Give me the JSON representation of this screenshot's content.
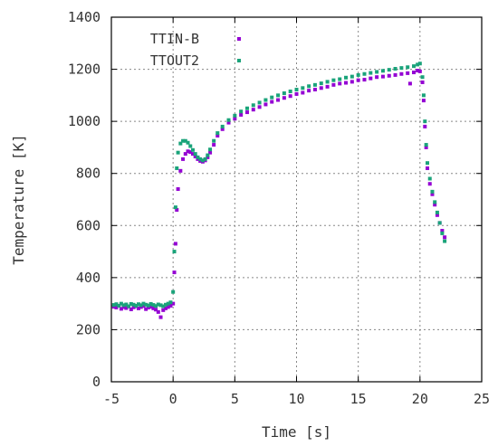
{
  "chart_data": {
    "type": "scatter",
    "title": "",
    "xlabel": "Time [s]",
    "ylabel": "Temperature [K]",
    "xlim": [
      -5,
      25
    ],
    "ylim": [
      0,
      1400
    ],
    "xticks": [
      -5,
      0,
      5,
      10,
      15,
      20,
      25
    ],
    "yticks": [
      0,
      200,
      400,
      600,
      800,
      1000,
      1200,
      1400
    ],
    "grid": true,
    "legend_position": "top-left",
    "series": [
      {
        "name": "TTIN-B",
        "color": "#9400d3",
        "points": [
          [
            -4.8,
            288
          ],
          [
            -4.6,
            285
          ],
          [
            -4.4,
            292
          ],
          [
            -4.2,
            280
          ],
          [
            -4.0,
            287
          ],
          [
            -3.8,
            283
          ],
          [
            -3.6,
            289
          ],
          [
            -3.4,
            278
          ],
          [
            -3.2,
            286
          ],
          [
            -3.0,
            290
          ],
          [
            -2.8,
            282
          ],
          [
            -2.6,
            287
          ],
          [
            -2.4,
            291
          ],
          [
            -2.2,
            279
          ],
          [
            -2.0,
            285
          ],
          [
            -1.8,
            288
          ],
          [
            -1.6,
            282
          ],
          [
            -1.4,
            277
          ],
          [
            -1.2,
            268
          ],
          [
            -1.0,
            248
          ],
          [
            -0.8,
            275
          ],
          [
            -0.6,
            282
          ],
          [
            -0.4,
            287
          ],
          [
            -0.2,
            292
          ],
          [
            0.0,
            300
          ],
          [
            0.1,
            420
          ],
          [
            0.2,
            530
          ],
          [
            0.3,
            660
          ],
          [
            0.4,
            740
          ],
          [
            0.6,
            810
          ],
          [
            0.8,
            855
          ],
          [
            1.0,
            875
          ],
          [
            1.2,
            885
          ],
          [
            1.4,
            882
          ],
          [
            1.6,
            875
          ],
          [
            1.8,
            865
          ],
          [
            2.0,
            855
          ],
          [
            2.2,
            848
          ],
          [
            2.4,
            845
          ],
          [
            2.6,
            850
          ],
          [
            2.8,
            862
          ],
          [
            3.0,
            880
          ],
          [
            3.3,
            910
          ],
          [
            3.6,
            945
          ],
          [
            4.0,
            970
          ],
          [
            4.5,
            995
          ],
          [
            5.0,
            1010
          ],
          [
            5.5,
            1025
          ],
          [
            6.0,
            1035
          ],
          [
            6.5,
            1045
          ],
          [
            7.0,
            1055
          ],
          [
            7.5,
            1065
          ],
          [
            8.0,
            1075
          ],
          [
            8.5,
            1082
          ],
          [
            9.0,
            1090
          ],
          [
            9.5,
            1097
          ],
          [
            10.0,
            1105
          ],
          [
            10.5,
            1110
          ],
          [
            11.0,
            1118
          ],
          [
            11.5,
            1122
          ],
          [
            12.0,
            1128
          ],
          [
            12.5,
            1133
          ],
          [
            13.0,
            1140
          ],
          [
            13.5,
            1145
          ],
          [
            14.0,
            1148
          ],
          [
            14.5,
            1152
          ],
          [
            15.0,
            1158
          ],
          [
            15.5,
            1160
          ],
          [
            16.0,
            1165
          ],
          [
            16.5,
            1170
          ],
          [
            17.0,
            1172
          ],
          [
            17.5,
            1175
          ],
          [
            18.0,
            1178
          ],
          [
            18.5,
            1182
          ],
          [
            19.0,
            1185
          ],
          [
            19.2,
            1145
          ],
          [
            19.5,
            1188
          ],
          [
            19.8,
            1195
          ],
          [
            20.0,
            1192
          ],
          [
            20.2,
            1150
          ],
          [
            20.3,
            1080
          ],
          [
            20.4,
            980
          ],
          [
            20.5,
            900
          ],
          [
            20.6,
            820
          ],
          [
            20.8,
            760
          ],
          [
            21.0,
            720
          ],
          [
            21.2,
            680
          ],
          [
            21.4,
            640
          ],
          [
            21.6,
            610
          ],
          [
            21.8,
            580
          ],
          [
            22.0,
            555
          ]
        ]
      },
      {
        "name": "TTOUT2",
        "color": "#1aa37a",
        "points": [
          [
            -4.8,
            295
          ],
          [
            -4.6,
            298
          ],
          [
            -4.4,
            292
          ],
          [
            -4.2,
            300
          ],
          [
            -4.0,
            294
          ],
          [
            -3.8,
            297
          ],
          [
            -3.6,
            290
          ],
          [
            -3.4,
            299
          ],
          [
            -3.2,
            296
          ],
          [
            -3.0,
            292
          ],
          [
            -2.8,
            298
          ],
          [
            -2.6,
            294
          ],
          [
            -2.4,
            300
          ],
          [
            -2.2,
            296
          ],
          [
            -2.0,
            293
          ],
          [
            -1.8,
            299
          ],
          [
            -1.6,
            295
          ],
          [
            -1.4,
            291
          ],
          [
            -1.2,
            297
          ],
          [
            -1.0,
            294
          ],
          [
            -0.8,
            290
          ],
          [
            -0.6,
            296
          ],
          [
            -0.4,
            300
          ],
          [
            -0.2,
            305
          ],
          [
            0.0,
            345
          ],
          [
            0.1,
            500
          ],
          [
            0.2,
            670
          ],
          [
            0.3,
            820
          ],
          [
            0.4,
            880
          ],
          [
            0.6,
            915
          ],
          [
            0.8,
            925
          ],
          [
            1.0,
            925
          ],
          [
            1.2,
            918
          ],
          [
            1.4,
            905
          ],
          [
            1.6,
            890
          ],
          [
            1.8,
            875
          ],
          [
            2.0,
            862
          ],
          [
            2.2,
            855
          ],
          [
            2.4,
            850
          ],
          [
            2.6,
            855
          ],
          [
            2.8,
            870
          ],
          [
            3.0,
            892
          ],
          [
            3.3,
            925
          ],
          [
            3.6,
            955
          ],
          [
            4.0,
            980
          ],
          [
            4.5,
            1005
          ],
          [
            5.0,
            1022
          ],
          [
            5.5,
            1038
          ],
          [
            6.0,
            1050
          ],
          [
            6.5,
            1062
          ],
          [
            7.0,
            1072
          ],
          [
            7.5,
            1082
          ],
          [
            8.0,
            1092
          ],
          [
            8.5,
            1100
          ],
          [
            9.0,
            1108
          ],
          [
            9.5,
            1115
          ],
          [
            10.0,
            1122
          ],
          [
            10.5,
            1128
          ],
          [
            11.0,
            1135
          ],
          [
            11.5,
            1140
          ],
          [
            12.0,
            1146
          ],
          [
            12.5,
            1152
          ],
          [
            13.0,
            1158
          ],
          [
            13.5,
            1162
          ],
          [
            14.0,
            1168
          ],
          [
            14.5,
            1172
          ],
          [
            15.0,
            1178
          ],
          [
            15.5,
            1182
          ],
          [
            16.0,
            1186
          ],
          [
            16.5,
            1190
          ],
          [
            17.0,
            1194
          ],
          [
            17.5,
            1198
          ],
          [
            18.0,
            1202
          ],
          [
            18.5,
            1205
          ],
          [
            19.0,
            1208
          ],
          [
            19.5,
            1212
          ],
          [
            19.8,
            1218
          ],
          [
            20.0,
            1222
          ],
          [
            20.2,
            1170
          ],
          [
            20.3,
            1100
          ],
          [
            20.4,
            1000
          ],
          [
            20.5,
            910
          ],
          [
            20.6,
            840
          ],
          [
            20.8,
            780
          ],
          [
            21.0,
            730
          ],
          [
            21.2,
            690
          ],
          [
            21.4,
            650
          ],
          [
            21.6,
            610
          ],
          [
            21.8,
            570
          ],
          [
            22.0,
            540
          ]
        ]
      }
    ]
  }
}
